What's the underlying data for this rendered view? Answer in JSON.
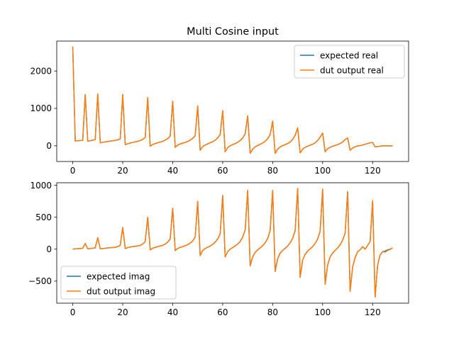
{
  "figure": {
    "title": "Multi Cosine input"
  },
  "colors": {
    "expected": "#1f77b4",
    "dut": "#ff7f0e"
  },
  "chart_data": [
    {
      "type": "line",
      "title": "Multi Cosine input",
      "xlabel": "",
      "ylabel": "",
      "xlim": [
        -6.4,
        134.4
      ],
      "ylim": [
        -420,
        2800
      ],
      "xticks": [
        0,
        20,
        40,
        60,
        80,
        100,
        120
      ],
      "yticks": [
        0,
        1000,
        2000
      ],
      "xtick_labels": [
        "0",
        "20",
        "40",
        "60",
        "80",
        "100",
        "120"
      ],
      "ytick_labels": [
        "0",
        "1000",
        "2000"
      ],
      "legend": {
        "position": "upper right",
        "labels": [
          "expected real",
          "dut output real"
        ]
      },
      "grid": false,
      "x": [
        0,
        1,
        2,
        3,
        4,
        5,
        6,
        7,
        8,
        9,
        10,
        11,
        12,
        13,
        14,
        15,
        16,
        17,
        18,
        19,
        20,
        21,
        22,
        23,
        24,
        25,
        26,
        27,
        28,
        29,
        30,
        31,
        32,
        33,
        34,
        35,
        36,
        37,
        38,
        39,
        40,
        41,
        42,
        43,
        44,
        45,
        46,
        47,
        48,
        49,
        50,
        51,
        52,
        53,
        54,
        55,
        56,
        57,
        58,
        59,
        60,
        61,
        62,
        63,
        64,
        65,
        66,
        67,
        68,
        69,
        70,
        71,
        72,
        73,
        74,
        75,
        76,
        77,
        78,
        79,
        80,
        81,
        82,
        83,
        84,
        85,
        86,
        87,
        88,
        89,
        90,
        91,
        92,
        93,
        94,
        95,
        96,
        97,
        98,
        99,
        100,
        101,
        102,
        103,
        104,
        105,
        106,
        107,
        108,
        109,
        110,
        111,
        112,
        113,
        114,
        115,
        116,
        117,
        118,
        119,
        120,
        121,
        122,
        123,
        124,
        125,
        126,
        127,
        128
      ],
      "series": [
        {
          "name": "expected real",
          "color_key": "expected",
          "values": [
            2650,
            130,
            135,
            140,
            150,
            1370,
            120,
            135,
            150,
            165,
            1390,
            80,
            95,
            105,
            115,
            125,
            135,
            145,
            160,
            180,
            1370,
            30,
            55,
            75,
            90,
            105,
            120,
            140,
            170,
            220,
            1290,
            -10,
            35,
            60,
            80,
            100,
            120,
            150,
            190,
            260,
            1190,
            -40,
            20,
            50,
            70,
            90,
            115,
            150,
            200,
            270,
            1070,
            -120,
            -20,
            20,
            50,
            80,
            110,
            150,
            210,
            300,
            940,
            -160,
            -50,
            0,
            30,
            60,
            95,
            140,
            210,
            320,
            800,
            -200,
            -90,
            -30,
            10,
            40,
            75,
            120,
            190,
            300,
            660,
            -200,
            -90,
            -30,
            5,
            30,
            60,
            100,
            170,
            280,
            480,
            -190,
            -90,
            -40,
            -10,
            15,
            40,
            80,
            140,
            230,
            340,
            -160,
            -80,
            -40,
            -10,
            10,
            30,
            60,
            100,
            170,
            210,
            -120,
            -60,
            -25,
            -5,
            5,
            20,
            40,
            60,
            80,
            90,
            -30,
            -20,
            -10,
            0,
            0,
            0,
            0,
            0
          ]
        },
        {
          "name": "dut output real",
          "color_key": "dut",
          "values": [
            2650,
            130,
            135,
            140,
            150,
            1370,
            120,
            135,
            150,
            165,
            1390,
            80,
            95,
            105,
            115,
            125,
            135,
            145,
            160,
            180,
            1370,
            30,
            55,
            75,
            90,
            105,
            120,
            140,
            170,
            220,
            1290,
            -10,
            35,
            60,
            80,
            100,
            120,
            150,
            190,
            260,
            1190,
            -40,
            20,
            50,
            70,
            90,
            115,
            150,
            200,
            270,
            1070,
            -120,
            -20,
            20,
            50,
            80,
            110,
            150,
            210,
            300,
            940,
            -160,
            -50,
            0,
            30,
            60,
            95,
            140,
            210,
            320,
            800,
            -200,
            -90,
            -30,
            10,
            40,
            75,
            120,
            190,
            300,
            660,
            -200,
            -90,
            -30,
            5,
            30,
            60,
            100,
            170,
            280,
            480,
            -190,
            -90,
            -40,
            -10,
            15,
            40,
            80,
            140,
            230,
            340,
            -160,
            -80,
            -40,
            -10,
            10,
            30,
            60,
            100,
            170,
            210,
            -120,
            -60,
            -25,
            -5,
            5,
            20,
            40,
            60,
            80,
            90,
            -30,
            -20,
            -10,
            0,
            0,
            0,
            0,
            0
          ]
        }
      ]
    },
    {
      "type": "line",
      "title": "",
      "xlabel": "",
      "ylabel": "",
      "xlim": [
        -6.4,
        134.4
      ],
      "ylim": [
        -845,
        1040
      ],
      "xticks": [
        0,
        20,
        40,
        60,
        80,
        100,
        120
      ],
      "yticks": [
        -500,
        0,
        500,
        1000
      ],
      "xtick_labels": [
        "0",
        "20",
        "40",
        "60",
        "80",
        "100",
        "120"
      ],
      "ytick_labels": [
        "−500",
        "0",
        "500",
        "1000"
      ],
      "legend": {
        "position": "lower left",
        "labels": [
          "expected imag",
          "dut output imag"
        ]
      },
      "grid": false,
      "x": [
        0,
        1,
        2,
        3,
        4,
        5,
        6,
        7,
        8,
        9,
        10,
        11,
        12,
        13,
        14,
        15,
        16,
        17,
        18,
        19,
        20,
        21,
        22,
        23,
        24,
        25,
        26,
        27,
        28,
        29,
        30,
        31,
        32,
        33,
        34,
        35,
        36,
        37,
        38,
        39,
        40,
        41,
        42,
        43,
        44,
        45,
        46,
        47,
        48,
        49,
        50,
        51,
        52,
        53,
        54,
        55,
        56,
        57,
        58,
        59,
        60,
        61,
        62,
        63,
        64,
        65,
        66,
        67,
        68,
        69,
        70,
        71,
        72,
        73,
        74,
        75,
        76,
        77,
        78,
        79,
        80,
        81,
        82,
        83,
        84,
        85,
        86,
        87,
        88,
        89,
        90,
        91,
        92,
        93,
        94,
        95,
        96,
        97,
        98,
        99,
        100,
        101,
        102,
        103,
        104,
        105,
        106,
        107,
        108,
        109,
        110,
        111,
        112,
        113,
        114,
        115,
        116,
        117,
        118,
        119,
        120,
        121,
        122,
        123,
        124,
        125,
        126,
        127,
        128
      ],
      "series": [
        {
          "name": "expected imag",
          "color_key": "expected",
          "values": [
            0,
            5,
            8,
            10,
            15,
            90,
            5,
            10,
            15,
            20,
            180,
            5,
            10,
            15,
            20,
            22,
            25,
            30,
            40,
            60,
            340,
            10,
            25,
            35,
            40,
            45,
            50,
            60,
            80,
            120,
            500,
            -10,
            15,
            30,
            40,
            50,
            60,
            80,
            110,
            160,
            640,
            -20,
            10,
            30,
            40,
            55,
            70,
            95,
            130,
            190,
            750,
            -100,
            -20,
            10,
            30,
            50,
            75,
            110,
            160,
            240,
            840,
            -120,
            -40,
            0,
            25,
            50,
            80,
            120,
            190,
            300,
            920,
            -260,
            -120,
            -50,
            -10,
            20,
            55,
            100,
            170,
            290,
            920,
            -350,
            -150,
            -60,
            -20,
            15,
            50,
            100,
            170,
            290,
            950,
            -440,
            -170,
            -80,
            -30,
            5,
            40,
            90,
            160,
            280,
            940,
            -550,
            -250,
            -120,
            -60,
            -20,
            20,
            70,
            140,
            250,
            900,
            -660,
            -280,
            -130,
            -40,
            -10,
            40,
            0,
            60,
            120,
            760,
            -750,
            -250,
            -90,
            -40,
            -30,
            -10,
            0,
            20
          ]
        },
        {
          "name": "dut output imag",
          "color_key": "dut",
          "values": [
            0,
            5,
            8,
            10,
            15,
            90,
            5,
            10,
            15,
            20,
            180,
            5,
            10,
            15,
            20,
            22,
            25,
            30,
            40,
            60,
            340,
            10,
            25,
            35,
            40,
            45,
            50,
            60,
            80,
            120,
            500,
            -10,
            15,
            30,
            40,
            50,
            60,
            80,
            110,
            160,
            640,
            -20,
            10,
            30,
            40,
            55,
            70,
            95,
            130,
            190,
            750,
            -100,
            -20,
            10,
            30,
            50,
            75,
            110,
            160,
            240,
            840,
            -120,
            -40,
            0,
            25,
            50,
            80,
            120,
            190,
            300,
            920,
            -260,
            -120,
            -50,
            -10,
            20,
            55,
            100,
            170,
            290,
            920,
            -350,
            -150,
            -60,
            -20,
            15,
            50,
            100,
            170,
            290,
            950,
            -440,
            -170,
            -80,
            -30,
            5,
            40,
            90,
            160,
            280,
            940,
            -550,
            -250,
            -120,
            -60,
            -20,
            20,
            70,
            140,
            250,
            900,
            -660,
            -280,
            -130,
            -40,
            -10,
            40,
            0,
            60,
            120,
            760,
            -750,
            -250,
            -90,
            -40,
            -45,
            -20,
            -5,
            20
          ]
        }
      ]
    }
  ]
}
